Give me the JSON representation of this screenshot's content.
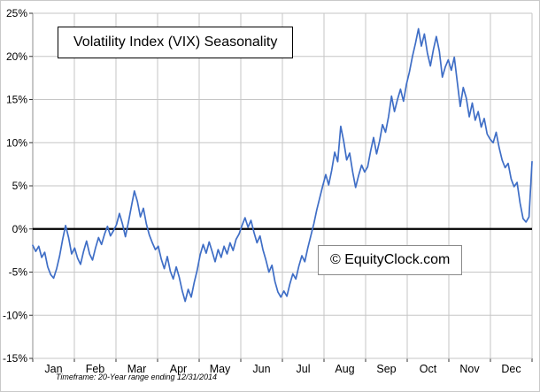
{
  "chart_data": {
    "type": "line",
    "title": "Volatility Index (VIX) Seasonality",
    "watermark": "© EquityClock.com",
    "footnote": "Timeframe: 20-Year range ending 12/31/2014",
    "categories": [
      "Jan",
      "Feb",
      "Mar",
      "Apr",
      "May",
      "Jun",
      "Jul",
      "Aug",
      "Sep",
      "Oct",
      "Nov",
      "Dec"
    ],
    "ylim": [
      -15,
      25
    ],
    "ytick_step": 5,
    "ytick_labels": [
      "25%",
      "20%",
      "15%",
      "10%",
      "5%",
      "0%",
      "-5%",
      "-10%",
      "-15%"
    ],
    "line_color": "#3f6ec6",
    "grid_color": "#c6c6c6",
    "zero_line_color": "#000000",
    "axis_color": "#8f8f8f",
    "tick_color": "#333333",
    "values": [
      -1.9,
      -2.6,
      -2.0,
      -3.3,
      -2.7,
      -4.4,
      -5.3,
      -5.7,
      -4.6,
      -3.1,
      -1.2,
      0.4,
      -1.0,
      -2.9,
      -2.2,
      -3.4,
      -4.1,
      -2.6,
      -1.4,
      -2.9,
      -3.6,
      -2.2,
      -1.0,
      -1.8,
      -0.6,
      0.3,
      -0.8,
      -0.2,
      0.5,
      1.8,
      0.6,
      -0.9,
      0.8,
      2.6,
      4.4,
      3.2,
      1.4,
      2.4,
      0.6,
      -0.7,
      -1.6,
      -2.4,
      -2.0,
      -3.5,
      -4.6,
      -3.2,
      -4.9,
      -5.8,
      -4.4,
      -5.6,
      -7.2,
      -8.4,
      -7.0,
      -7.9,
      -6.2,
      -4.8,
      -3.0,
      -1.8,
      -2.8,
      -1.5,
      -2.6,
      -3.8,
      -2.4,
      -3.3,
      -2.0,
      -2.9,
      -1.6,
      -2.5,
      -1.2,
      -0.6,
      0.4,
      1.3,
      0.2,
      1.0,
      -0.4,
      -1.6,
      -0.8,
      -2.4,
      -3.6,
      -5.0,
      -4.2,
      -6.1,
      -7.3,
      -7.9,
      -7.2,
      -7.8,
      -6.4,
      -5.2,
      -5.8,
      -4.3,
      -3.1,
      -3.8,
      -2.2,
      -0.8,
      0.6,
      2.2,
      3.6,
      5.0,
      6.3,
      5.1,
      6.8,
      8.9,
      7.8,
      11.9,
      10.2,
      8.0,
      8.8,
      6.6,
      4.8,
      6.2,
      7.4,
      6.6,
      7.2,
      9.0,
      10.6,
      8.7,
      10.2,
      12.1,
      11.2,
      13.0,
      15.4,
      13.6,
      15.0,
      16.2,
      14.8,
      16.8,
      18.2,
      20.0,
      21.5,
      23.2,
      21.2,
      22.6,
      20.4,
      18.9,
      20.8,
      22.3,
      20.6,
      17.6,
      18.8,
      19.6,
      18.4,
      19.9,
      17.0,
      14.2,
      16.4,
      15.2,
      13.0,
      14.6,
      12.6,
      13.6,
      11.8,
      12.8,
      11.0,
      10.4,
      10.0,
      11.2,
      9.4,
      8.0,
      7.1,
      7.6,
      5.8,
      4.9,
      5.4,
      3.0,
      1.2,
      0.8,
      1.4,
      7.8
    ]
  }
}
